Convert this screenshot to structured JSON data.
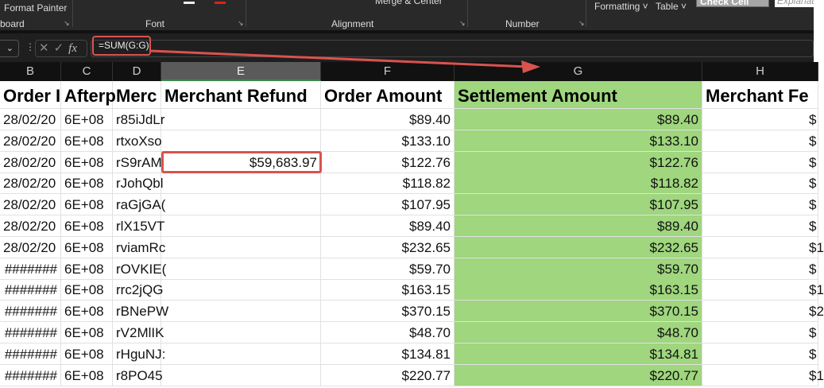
{
  "ribbon": {
    "format_painter": "Format Painter",
    "groups": [
      "board",
      "Font",
      "Alignment",
      "Number"
    ],
    "merge_center": "Merge & Center",
    "formatting": "Formatting ˅",
    "table": "Table ˅",
    "check_cell": "Check Cell",
    "explanatory": "Explanat"
  },
  "formula_bar": {
    "fx": "fx",
    "formula": "=SUM(G:G)"
  },
  "columns": [
    "B",
    "C",
    "D",
    "E",
    "F",
    "G",
    "H"
  ],
  "selected_column": "E",
  "headers": [
    "Order I",
    "Afterp",
    "Merc",
    "Merchant Refund",
    "Order Amount",
    "Settlement Amount",
    "Merchant Fe"
  ],
  "rows": [
    [
      "28/02/20",
      "6E+08",
      "r85iJdLr",
      "",
      "$89.40",
      "$89.40",
      "$"
    ],
    [
      "28/02/20",
      "6E+08",
      "rtxoXso",
      "",
      "$133.10",
      "$133.10",
      "$"
    ],
    [
      "28/02/20",
      "6E+08",
      "rS9rAM",
      "$59,683.97",
      "$122.76",
      "$122.76",
      "$"
    ],
    [
      "28/02/20",
      "6E+08",
      "rJohQbl",
      "",
      "$118.82",
      "$118.82",
      "$"
    ],
    [
      "28/02/20",
      "6E+08",
      "raGjGA(",
      "",
      "$107.95",
      "$107.95",
      "$"
    ],
    [
      "28/02/20",
      "6E+08",
      "rlX15VT",
      "",
      "$89.40",
      "$89.40",
      "$"
    ],
    [
      "28/02/20",
      "6E+08",
      "rviamRc",
      "",
      "$232.65",
      "$232.65",
      "$1"
    ],
    [
      "#######",
      "6E+08",
      "rOVKIE(",
      "",
      "$59.70",
      "$59.70",
      "$"
    ],
    [
      "#######",
      "6E+08",
      "rrc2jQG",
      "",
      "$163.15",
      "$163.15",
      "$1"
    ],
    [
      "#######",
      "6E+08",
      "rBNePW",
      "",
      "$370.15",
      "$370.15",
      "$2"
    ],
    [
      "#######",
      "6E+08",
      "rV2MlIK",
      "",
      "$48.70",
      "$48.70",
      "$"
    ],
    [
      "#######",
      "6E+08",
      "rHguNJ:",
      "",
      "$134.81",
      "$134.81",
      "$"
    ],
    [
      "#######",
      "6E+08",
      "r8PO45",
      "",
      "$220.77",
      "$220.77",
      "$1"
    ]
  ],
  "colors": {
    "highlight": "#9fd67e",
    "annotation": "#d9534f"
  }
}
